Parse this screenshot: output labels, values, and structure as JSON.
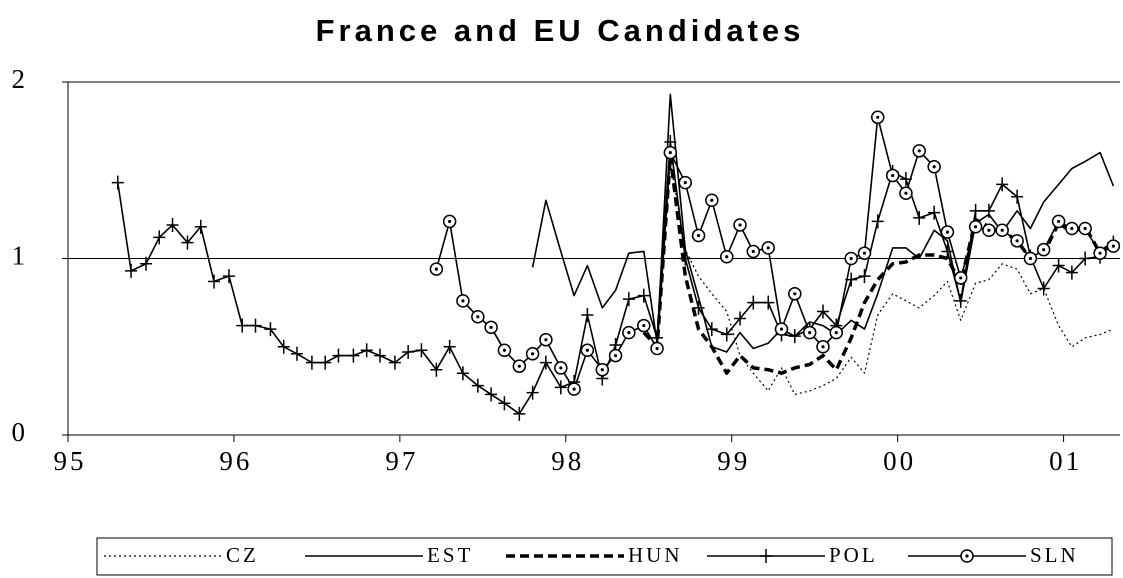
{
  "chart_data": {
    "type": "line",
    "title": "France and EU Candidates",
    "x": [
      1995.3,
      1995.38,
      1995.47,
      1995.55,
      1995.63,
      1995.72,
      1995.8,
      1995.88,
      1995.97,
      1996.05,
      1996.13,
      1996.22,
      1996.3,
      1996.38,
      1996.47,
      1996.55,
      1996.63,
      1996.72,
      1996.8,
      1996.88,
      1996.97,
      1997.05,
      1997.13,
      1997.22,
      1997.3,
      1997.38,
      1997.47,
      1997.55,
      1997.63,
      1997.72,
      1997.8,
      1997.88,
      1997.97,
      1998.05,
      1998.13,
      1998.22,
      1998.3,
      1998.38,
      1998.47,
      1998.55,
      1998.63,
      1998.72,
      1998.8,
      1998.88,
      1998.97,
      1999.05,
      1999.13,
      1999.22,
      1999.3,
      1999.38,
      1999.47,
      1999.55,
      1999.63,
      1999.72,
      1999.8,
      1999.88,
      1999.97,
      2000.05,
      2000.13,
      2000.22,
      2000.3,
      2000.38,
      2000.47,
      2000.55,
      2000.63,
      2000.72,
      2000.8,
      2000.88,
      2000.97,
      2001.05,
      2001.13,
      2001.22,
      2001.3
    ],
    "xlim": [
      1995,
      2001.34
    ],
    "xticks": [
      {
        "value": 1995,
        "label": "95"
      },
      {
        "value": 1996,
        "label": "96"
      },
      {
        "value": 1997,
        "label": "97"
      },
      {
        "value": 1998,
        "label": "98"
      },
      {
        "value": 1999,
        "label": "99"
      },
      {
        "value": 2000,
        "label": "00"
      },
      {
        "value": 2001,
        "label": "01"
      }
    ],
    "ylim": [
      0,
      2
    ],
    "yticks": [
      0,
      1,
      2
    ],
    "grid": true,
    "legend": "bottom",
    "series": [
      {
        "name": "CZ",
        "color": "#000000",
        "dash": "dotted",
        "marker": "none",
        "values": [
          null,
          null,
          null,
          null,
          null,
          null,
          null,
          null,
          null,
          null,
          null,
          null,
          null,
          null,
          null,
          null,
          null,
          null,
          null,
          null,
          null,
          null,
          null,
          null,
          null,
          null,
          null,
          null,
          null,
          null,
          null,
          null,
          null,
          null,
          null,
          null,
          null,
          null,
          0.6,
          0.5,
          1.55,
          1.05,
          0.9,
          0.8,
          0.7,
          0.45,
          0.35,
          0.25,
          0.38,
          0.23,
          0.25,
          0.28,
          0.32,
          0.44,
          0.35,
          0.68,
          0.8,
          0.76,
          0.72,
          0.79,
          0.87,
          0.65,
          0.86,
          0.88,
          0.97,
          0.94,
          0.8,
          0.83,
          0.62,
          0.5,
          0.55,
          0.57,
          0.6
        ]
      },
      {
        "name": "EST",
        "color": "#000000",
        "dash": "solid",
        "marker": "none",
        "values": [
          null,
          null,
          null,
          null,
          null,
          null,
          null,
          null,
          null,
          null,
          null,
          null,
          null,
          null,
          null,
          null,
          null,
          null,
          null,
          null,
          null,
          null,
          null,
          null,
          null,
          null,
          null,
          null,
          null,
          null,
          0.95,
          1.33,
          1.04,
          0.79,
          0.96,
          0.72,
          0.82,
          1.03,
          1.04,
          0.52,
          1.93,
          1.05,
          0.78,
          0.5,
          0.47,
          0.58,
          0.49,
          0.52,
          0.6,
          0.56,
          0.64,
          0.62,
          0.57,
          0.65,
          0.6,
          0.8,
          1.06,
          1.06,
          1.0,
          1.16,
          1.1,
          0.75,
          1.2,
          1.25,
          1.15,
          1.27,
          1.17,
          1.32,
          1.42,
          1.51,
          1.55,
          1.6,
          1.41
        ]
      },
      {
        "name": "HUN",
        "color": "#000000",
        "dash": "dashed",
        "marker": "none",
        "values": [
          null,
          null,
          null,
          null,
          null,
          null,
          null,
          null,
          null,
          null,
          null,
          null,
          null,
          null,
          null,
          null,
          null,
          null,
          null,
          null,
          null,
          null,
          null,
          null,
          null,
          null,
          null,
          null,
          null,
          null,
          null,
          null,
          null,
          null,
          null,
          null,
          null,
          null,
          0.58,
          0.5,
          1.58,
          0.9,
          0.6,
          0.5,
          0.35,
          0.45,
          0.38,
          0.37,
          0.35,
          0.38,
          0.4,
          0.45,
          0.37,
          0.55,
          0.75,
          0.88,
          0.97,
          0.98,
          1.02,
          1.02,
          1.0,
          0.86,
          1.22,
          1.18,
          1.16,
          1.1,
          1.0,
          1.03,
          1.2,
          1.15,
          1.18,
          1.03,
          1.1
        ]
      },
      {
        "name": "POL",
        "color": "#000000",
        "dash": "solid",
        "marker": "plus",
        "values": [
          1.43,
          0.93,
          0.97,
          1.12,
          1.19,
          1.09,
          1.18,
          0.87,
          0.9,
          0.62,
          0.62,
          0.6,
          0.5,
          0.46,
          0.41,
          0.41,
          0.45,
          0.45,
          0.48,
          0.45,
          0.41,
          0.47,
          0.48,
          0.37,
          0.5,
          0.35,
          0.28,
          0.23,
          0.18,
          0.12,
          0.24,
          0.41,
          0.27,
          0.3,
          0.68,
          0.32,
          0.51,
          0.77,
          0.79,
          0.55,
          1.66,
          1.0,
          0.72,
          0.6,
          0.57,
          0.66,
          0.75,
          0.75,
          0.57,
          0.56,
          0.6,
          0.7,
          0.62,
          0.88,
          0.9,
          1.21,
          1.49,
          1.45,
          1.23,
          1.26,
          1.04,
          0.76,
          1.27,
          1.27,
          1.42,
          1.35,
          1.01,
          0.83,
          0.96,
          0.92,
          1.0,
          1.01,
          1.09
        ]
      },
      {
        "name": "SLN",
        "color": "#000000",
        "dash": "solid",
        "marker": "circle",
        "values": [
          null,
          null,
          null,
          null,
          null,
          null,
          null,
          null,
          null,
          null,
          null,
          null,
          null,
          null,
          null,
          null,
          null,
          null,
          null,
          null,
          null,
          null,
          null,
          0.94,
          1.21,
          0.76,
          0.67,
          0.61,
          0.48,
          0.39,
          0.46,
          0.54,
          0.38,
          0.26,
          0.48,
          0.37,
          0.45,
          0.58,
          0.62,
          0.49,
          1.6,
          1.43,
          1.13,
          1.33,
          1.01,
          1.19,
          1.04,
          1.06,
          0.6,
          0.8,
          0.58,
          0.5,
          0.58,
          1.0,
          1.03,
          1.8,
          1.47,
          1.37,
          1.61,
          1.52,
          1.15,
          0.89,
          1.18,
          1.16,
          1.16,
          1.1,
          1.0,
          1.05,
          1.21,
          1.17,
          1.17,
          1.03,
          1.07
        ]
      }
    ]
  }
}
